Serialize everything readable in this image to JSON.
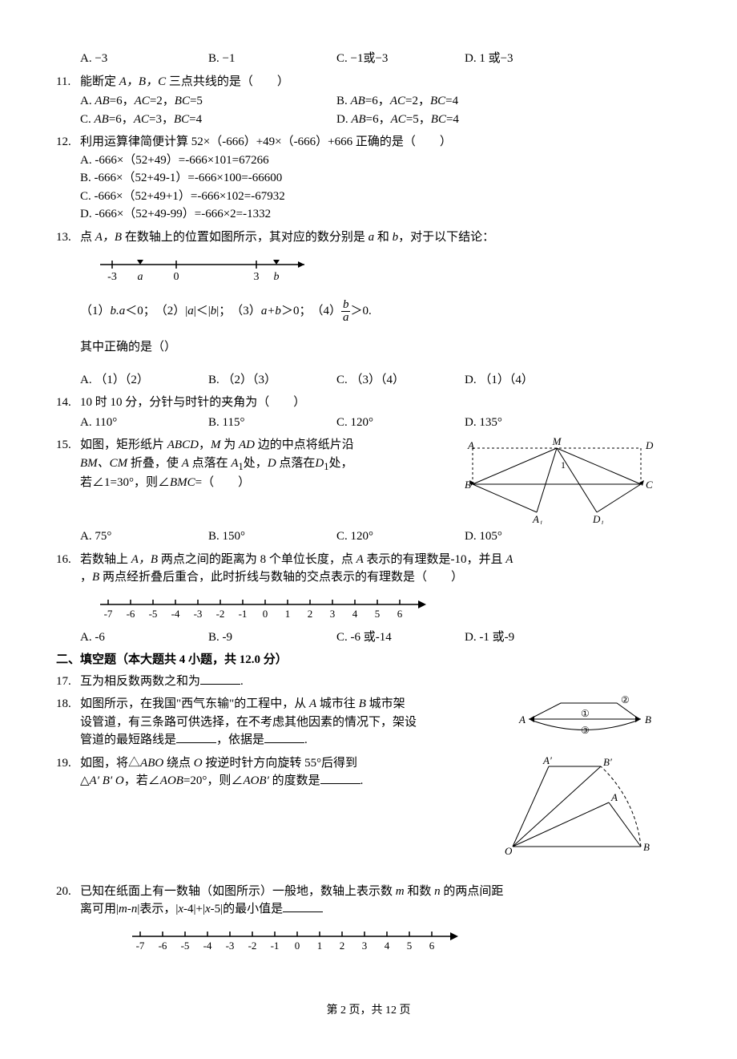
{
  "q10_opts": {
    "a": "A. −3",
    "b": "B. −1",
    "c": "C. −1或−3",
    "d": "D. 1 或−3"
  },
  "q11": {
    "num": "11.",
    "text_pre": "能断定 ",
    "text_mid": "A，B，C",
    "text_post": " 三点共线的是（　　）",
    "opts": {
      "a_pre": "A. ",
      "a_i": "AB",
      "a_mid": "=6，",
      "a_i2": "AC",
      "a_mid2": "=2，",
      "a_i3": "BC",
      "a_end": "=5",
      "b_pre": "B. ",
      "b_i": "AB",
      "b_mid": "=6，",
      "b_i2": "AC",
      "b_mid2": "=2，",
      "b_i3": "BC",
      "b_end": "=4",
      "c_pre": "C. ",
      "c_i": "AB",
      "c_mid": "=6，",
      "c_i2": "AC",
      "c_mid2": "=3，",
      "c_i3": "BC",
      "c_end": "=4",
      "d_pre": "D. ",
      "d_i": "AB",
      "d_mid": "=6，",
      "d_i2": "AC",
      "d_mid2": "=5，",
      "d_i3": "BC",
      "d_end": "=4"
    }
  },
  "q12": {
    "num": "12.",
    "text": "利用运算律简便计算 52×（-666）+49×（-666）+666 正确的是（　　）",
    "a": "A. -666×（52+49）=-666×101=67266",
    "b": "B. -666×（52+49-1）=-666×100=-66600",
    "c": "C. -666×（52+49+1）=-666×102=-67932",
    "d": "D. -666×（52+49-99）=-666×2=-1332"
  },
  "q13": {
    "num": "13.",
    "text_pre": "点 ",
    "text_i1": "A，B",
    "text_mid1": " 在数轴上的位置如图所示，其对应的数分别是 ",
    "text_i2": "a",
    "text_mid2": " 和 ",
    "text_i3": "b",
    "text_post": "，对于以下结论：",
    "stmt_1": "（1）",
    "stmt_1i": "b.a",
    "stmt_1p": "＜0；　（2）|",
    "stmt_1i2": "a",
    "stmt_1p2": "|＜|",
    "stmt_1i3": "b",
    "stmt_1p3": "|；　（3）",
    "stmt_1i4": "a+b",
    "stmt_1p4": "＞0；　（4）",
    "stmt_1p5": "＞0.",
    "concl": "其中正确的是（）",
    "opts": {
      "a": "A. （1）（2）",
      "b": "B. （2）（3）",
      "c": "C. （3）（4）",
      "d": "D. （1）（4）"
    },
    "nl": {
      "ticks": [
        -3,
        0,
        3
      ],
      "labels": [
        "-3",
        "a",
        "0",
        "3",
        "b"
      ]
    }
  },
  "q14": {
    "num": "14.",
    "text": "10 时 10 分，分针与时针的夹角为（　　）",
    "opts": {
      "a": "A. 110°",
      "b": "B. 115°",
      "c": "C. 120°",
      "d": "D. 135°"
    }
  },
  "q15": {
    "num": "15.",
    "t1": "如图，矩形纸片 ",
    "i1": "ABCD",
    "t2": "，",
    "i2": "M",
    "t3": " 为 ",
    "i3": "AD",
    "t4": " 边的中点将纸片沿",
    "l2a": "BM、CM",
    "l2b": " 折叠，使 ",
    "l2i1": "A",
    "l2c": " 点落在 ",
    "l2i2": "A",
    "l2sub1": "1",
    "l2d": "处，",
    "l2i3": "D",
    "l2e": " 点落在",
    "l2i4": "D",
    "l2sub2": "1",
    "l2f": "处，",
    "l3a": "若∠1=30°，则∠",
    "l3i": "BMC",
    "l3b": "=（　　）",
    "opts": {
      "a": "A. 75°",
      "b": "B. 150°",
      "c": "C. 120°",
      "d": "D. 105°"
    },
    "fig": {
      "A": "A",
      "M": "M",
      "D": "D",
      "B": "B",
      "C": "C",
      "A1": "A₁",
      "D1": "D₁",
      "one": "1"
    }
  },
  "q16": {
    "num": "16.",
    "t1": "若数轴上 ",
    "i1": "A，B",
    "t2": " 两点之间的距离为 8 个单位长度，点 ",
    "i2": "A",
    "t3": " 表示的有理数是-10，并且 ",
    "i3": "A",
    "l2a": "，",
    "l2i": "B",
    "l2b": " 两点经折叠后重合，此时折线与数轴的交点表示的有理数是（　　）",
    "opts": {
      "a": "A. -6",
      "b": "B. -9",
      "c": "C. -6 或-14",
      "d": "D. -1 或-9"
    },
    "nl_labels": [
      "-7",
      "-6",
      "-5",
      "-4",
      "-3",
      "-2",
      "-1",
      "0",
      "1",
      "2",
      "3",
      "4",
      "5",
      "6"
    ]
  },
  "section2": "二、填空题（本大题共 4 小题，共 12.0 分）",
  "q17": {
    "num": "17.",
    "text": "互为相反数两数之和为",
    "post": "."
  },
  "q18": {
    "num": "18.",
    "l1": "如图所示，在我国\"西气东输\"的工程中，从 ",
    "l1i": "A",
    "l1b": " 城市往 ",
    "l1i2": "B",
    "l1c": " 城市架",
    "l2": "设管道，有三条路可供选择，在不考虑其他因素的情况下，架设",
    "l3": "管道的最短路线是",
    "l3b": "，依据是",
    "l3c": ".",
    "fig": {
      "A": "A",
      "B": "B",
      "n1": "①",
      "n2": "②",
      "n3": "③"
    }
  },
  "q19": {
    "num": "19.",
    "l1a": "如图，将",
    "l1tri": "△",
    "l1i": "ABO",
    "l1b": " 绕点 ",
    "l1i2": "O",
    "l1c": " 按逆时针方向旋转 55°后得到",
    "l2tri": "△",
    "l2i": "A′ B′ O",
    "l2a": "，若∠",
    "l2i2": "AOB",
    "l2b": "=20°，则∠",
    "l2i3": "AOB′",
    "l2c": " 的度数是",
    "l2d": ".",
    "fig": {
      "O": "O",
      "A": "A",
      "B": "B",
      "Ap": "A′",
      "Bp": "B′"
    }
  },
  "q20": {
    "num": "20.",
    "l1a": "已知在纸面上有一数轴（如图所示）一般地，数轴上表示数 ",
    "l1i1": "m",
    "l1b": " 和数 ",
    "l1i2": "n",
    "l1c": " 的两点间距",
    "l2a": "离可用|",
    "l2i1": "m-n",
    "l2b": "|表示，|",
    "l2i2": "x",
    "l2c": "-4|+|",
    "l2i3": "x",
    "l2d": "-5|的最小值是",
    "nl_labels": [
      "-7",
      "-6",
      "-5",
      "-4",
      "-3",
      "-2",
      "-1",
      "0",
      "1",
      "2",
      "3",
      "4",
      "5",
      "6"
    ]
  },
  "footer": {
    "pre": "第 ",
    "page": "2",
    "mid": " 页，共 ",
    "total": "12",
    "post": " 页"
  }
}
